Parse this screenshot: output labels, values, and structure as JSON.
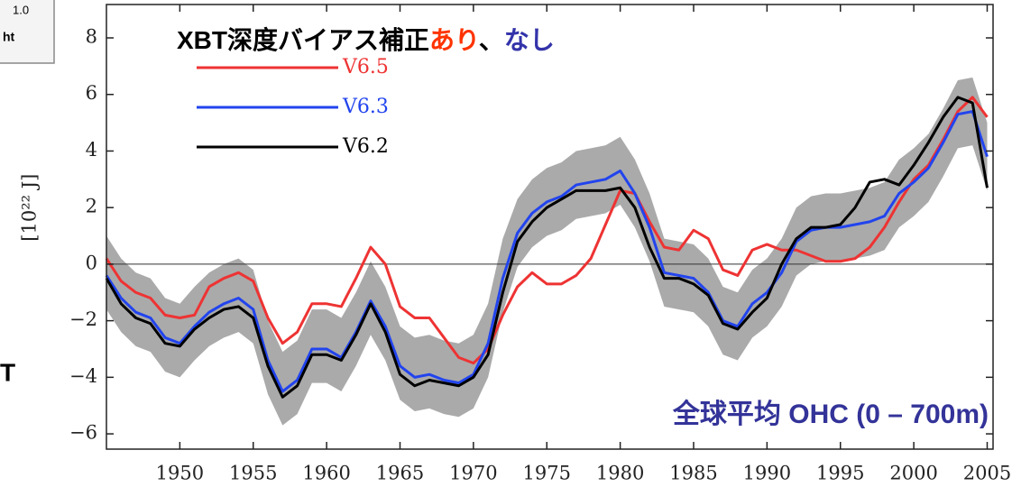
{
  "fragments": [
    "1.0",
    "ht",
    "T"
  ],
  "chart_data": {
    "type": "line",
    "title_parts": [
      {
        "text": "XBT深度バイアス補正",
        "color": "#000000"
      },
      {
        "text": "あり",
        "color": "#ff3300"
      },
      {
        "text": "、",
        "color": "#000000"
      },
      {
        "text": "なし",
        "color": "#3333aa"
      }
    ],
    "annotation": "全球平均 OHC (0 – 700m)",
    "annotation_color": "#333399",
    "y_label": "[10²² J]",
    "x": [
      1945,
      1946,
      1947,
      1948,
      1949,
      1950,
      1951,
      1952,
      1953,
      1954,
      1955,
      1956,
      1957,
      1958,
      1959,
      1960,
      1961,
      1962,
      1963,
      1964,
      1965,
      1966,
      1967,
      1968,
      1969,
      1970,
      1971,
      1972,
      1973,
      1974,
      1975,
      1976,
      1977,
      1978,
      1979,
      1980,
      1981,
      1982,
      1983,
      1984,
      1985,
      1986,
      1987,
      1988,
      1989,
      1990,
      1991,
      1992,
      1993,
      1994,
      1995,
      1996,
      1997,
      1998,
      1999,
      2000,
      2001,
      2002,
      2003,
      2004,
      2005
    ],
    "xlim": [
      1945,
      2005.4
    ],
    "xticks": [
      1950,
      1955,
      1960,
      1965,
      1970,
      1975,
      1980,
      1985,
      1990,
      1995,
      2000,
      2005
    ],
    "ylim": [
      -6.54,
      9.18
    ],
    "yticks": [
      {
        "value": -6,
        "label": "−6"
      },
      {
        "value": -4,
        "label": "−4"
      },
      {
        "value": -2,
        "label": "−2"
      },
      0,
      2,
      4,
      6,
      8
    ],
    "zero_line": true,
    "band": {
      "color": "#aaaaaa",
      "upper": [
        1.0,
        0.2,
        -0.3,
        -0.5,
        -1.2,
        -1.4,
        -0.8,
        -0.3,
        0.0,
        0.2,
        -0.2,
        -2.0,
        -3.1,
        -2.7,
        -1.6,
        -1.6,
        -1.9,
        -1.0,
        0.1,
        -0.8,
        -2.2,
        -2.6,
        -2.5,
        -2.7,
        -2.8,
        -2.5,
        -1.4,
        0.9,
        2.3,
        3.0,
        3.4,
        3.6,
        4.0,
        4.1,
        4.2,
        4.5,
        3.7,
        2.5,
        0.9,
        0.8,
        0.7,
        0.2,
        -0.8,
        -1.0,
        -0.2,
        0.2,
        0.9,
        2.0,
        2.4,
        2.5,
        2.5,
        2.6,
        2.7,
        2.9,
        3.7,
        4.1,
        4.6,
        5.5,
        6.5,
        6.6,
        5.0
      ],
      "lower": [
        -1.6,
        -2.4,
        -2.9,
        -3.1,
        -3.8,
        -4.0,
        -3.4,
        -2.9,
        -2.6,
        -2.4,
        -2.8,
        -4.6,
        -5.7,
        -5.3,
        -4.2,
        -4.2,
        -4.5,
        -3.6,
        -2.5,
        -3.4,
        -4.8,
        -5.2,
        -5.1,
        -5.3,
        -5.4,
        -5.1,
        -4.0,
        -1.7,
        -0.1,
        0.6,
        1.0,
        1.2,
        1.6,
        1.7,
        1.8,
        2.1,
        1.3,
        0.1,
        -1.5,
        -1.6,
        -1.7,
        -2.2,
        -3.2,
        -3.4,
        -2.6,
        -2.2,
        -1.5,
        -0.4,
        0.0,
        0.1,
        0.1,
        0.2,
        0.3,
        0.5,
        1.3,
        1.7,
        2.2,
        3.1,
        4.1,
        4.2,
        2.6
      ]
    },
    "series": [
      {
        "name": "V6.5",
        "color": "#ee3333",
        "values": [
          0.2,
          -0.6,
          -1.0,
          -1.2,
          -1.8,
          -1.9,
          -1.8,
          -0.8,
          -0.5,
          -0.3,
          -0.6,
          -1.9,
          -2.8,
          -2.4,
          -1.4,
          -1.4,
          -1.5,
          -0.5,
          0.6,
          0.0,
          -1.5,
          -1.9,
          -1.9,
          -2.6,
          -3.3,
          -3.5,
          -3.0,
          -1.8,
          -0.8,
          -0.3,
          -0.7,
          -0.7,
          -0.4,
          0.2,
          1.4,
          2.6,
          2.5,
          1.5,
          0.6,
          0.5,
          1.2,
          0.9,
          -0.2,
          -0.4,
          0.5,
          0.7,
          0.5,
          0.5,
          0.3,
          0.1,
          0.1,
          0.2,
          0.6,
          1.3,
          2.2,
          3.0,
          3.5,
          4.4,
          5.4,
          5.9,
          5.2
        ]
      },
      {
        "name": "V6.3",
        "color": "#2244ee",
        "values": [
          -0.4,
          -1.2,
          -1.7,
          -1.9,
          -2.6,
          -2.8,
          -2.2,
          -1.7,
          -1.4,
          -1.2,
          -1.6,
          -3.4,
          -4.5,
          -4.1,
          -3.0,
          -3.0,
          -3.3,
          -2.4,
          -1.3,
          -2.2,
          -3.6,
          -4.0,
          -3.9,
          -4.1,
          -4.2,
          -3.9,
          -2.8,
          -0.5,
          1.1,
          1.8,
          2.2,
          2.4,
          2.8,
          2.9,
          3.0,
          3.3,
          2.5,
          1.3,
          -0.3,
          -0.4,
          -0.5,
          -1.0,
          -2.0,
          -2.2,
          -1.4,
          -1.0,
          -0.3,
          0.8,
          1.2,
          1.3,
          1.3,
          1.4,
          1.5,
          1.7,
          2.5,
          2.9,
          3.4,
          4.3,
          5.3,
          5.4,
          3.8
        ]
      },
      {
        "name": "V6.2",
        "color": "#000000",
        "values": [
          -0.5,
          -1.4,
          -1.9,
          -2.1,
          -2.8,
          -2.9,
          -2.3,
          -1.9,
          -1.6,
          -1.5,
          -1.9,
          -3.6,
          -4.7,
          -4.3,
          -3.2,
          -3.2,
          -3.4,
          -2.5,
          -1.4,
          -2.4,
          -3.9,
          -4.3,
          -4.1,
          -4.2,
          -4.3,
          -4.0,
          -3.2,
          -1.0,
          0.8,
          1.5,
          2.0,
          2.3,
          2.6,
          2.6,
          2.6,
          2.7,
          2.0,
          0.6,
          -0.5,
          -0.5,
          -0.7,
          -1.1,
          -2.1,
          -2.3,
          -1.7,
          -1.2,
          0.0,
          0.9,
          1.3,
          1.3,
          1.4,
          2.0,
          2.9,
          3.0,
          2.8,
          3.5,
          4.3,
          5.2,
          5.9,
          5.7,
          2.7
        ]
      }
    ]
  }
}
